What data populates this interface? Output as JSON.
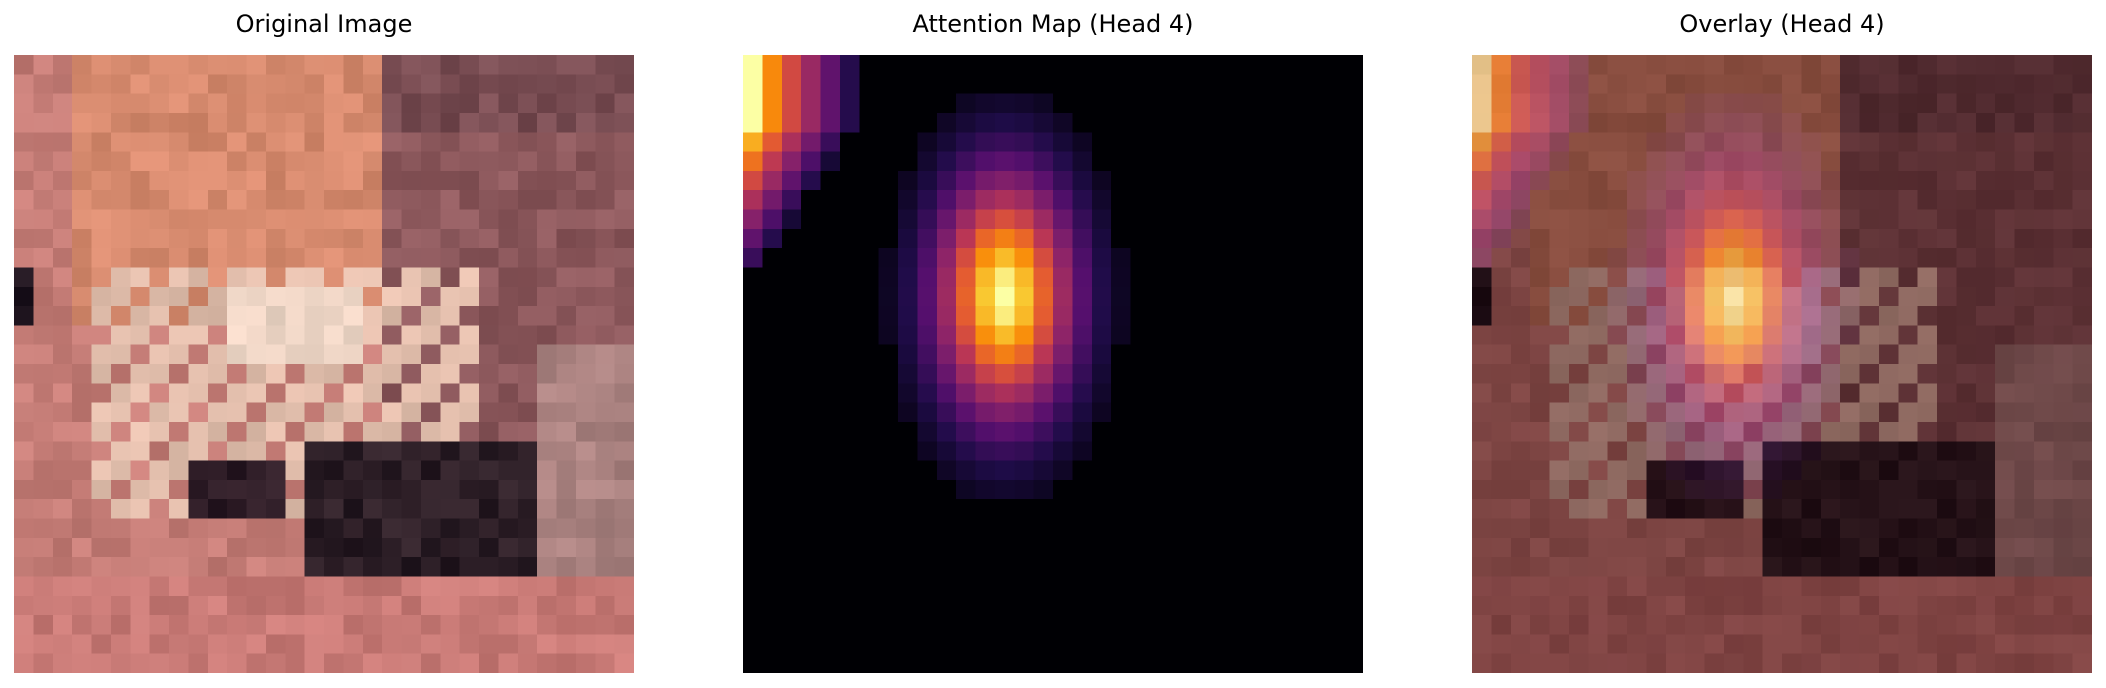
{
  "panels": [
    {
      "title": "Original Image",
      "kind": "original"
    },
    {
      "title": "Attention Map (Head 4)",
      "kind": "attention",
      "colormap": "inferno"
    },
    {
      "title": "Overlay (Head 4)",
      "kind": "overlay",
      "colormap": "inferno"
    }
  ],
  "colors": {
    "background": "#ffffff",
    "attention_background": "#000004",
    "original_palette": [
      "#c9837a",
      "#d98a6e",
      "#e8c4b0",
      "#5a3a3e",
      "#1c1420",
      "#c07a78",
      "#8e5a5a",
      "#e7a38f"
    ]
  }
}
